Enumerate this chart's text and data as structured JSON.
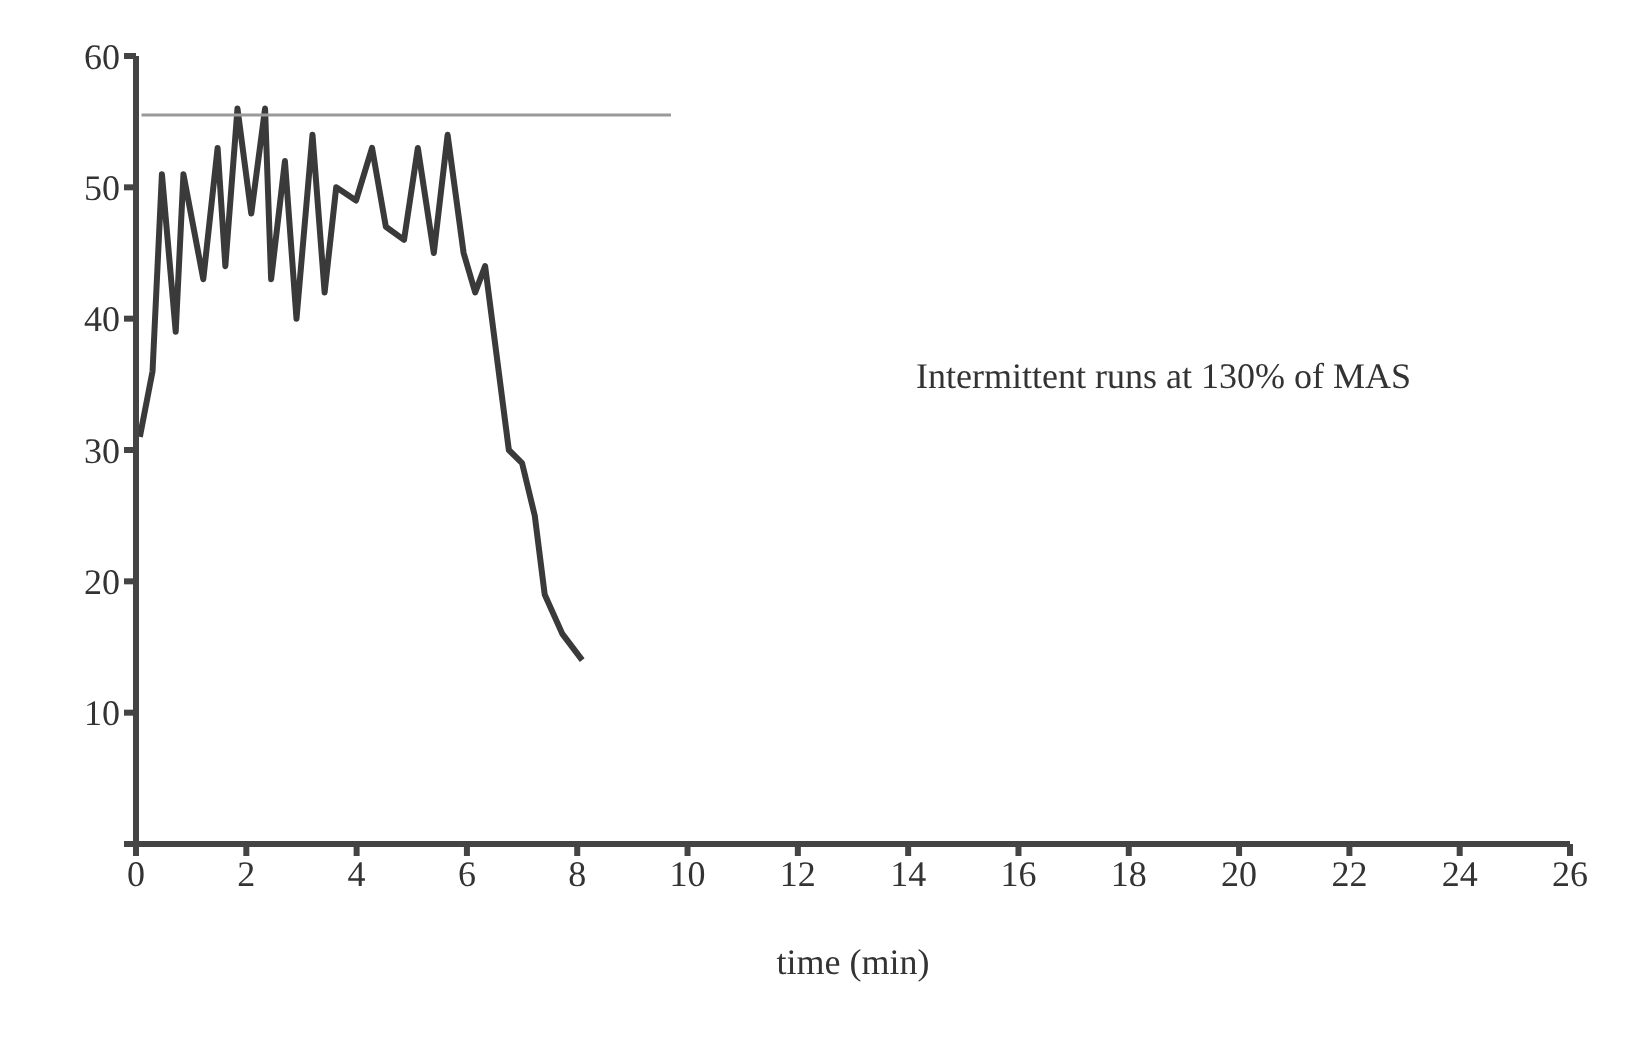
{
  "chart_data": {
    "type": "line",
    "xlabel": "time (min)",
    "annotations": [
      "Intermittent runs at 130% of MAS"
    ],
    "xlim": [
      0,
      26
    ],
    "xticks": [
      {
        "value": 0,
        "label": "0"
      },
      2,
      4,
      6,
      8,
      10,
      12,
      14,
      16,
      18,
      20,
      22,
      24,
      26
    ],
    "ylim": [
      0,
      60
    ],
    "yticks": [
      {
        "value": 0,
        "label": null
      },
      10,
      20,
      30,
      40,
      50,
      60
    ],
    "grid": false,
    "marker": "none",
    "line_style": "solid",
    "series": [
      {
        "color": "#3a3a3a",
        "x": [
          0.07,
          0.3,
          0.47,
          0.72,
          0.86,
          1.22,
          1.48,
          1.62,
          1.84,
          2.09,
          2.34,
          2.45,
          2.7,
          2.91,
          3.2,
          3.42,
          3.63,
          3.99,
          4.28,
          4.53,
          4.86,
          5.11,
          5.4,
          5.65,
          5.94,
          6.15,
          6.33,
          6.76,
          7.0,
          7.23,
          7.41,
          7.73,
          8.09
        ],
        "values": [
          31,
          36,
          51,
          39,
          51,
          43,
          53,
          44,
          56,
          48,
          56,
          43,
          52,
          40,
          54,
          42,
          50,
          49,
          53,
          47,
          46,
          53,
          45,
          54,
          45,
          42,
          44,
          30,
          29,
          25,
          19,
          16,
          14
        ]
      },
      {
        "type": "line",
        "color": "#9a9a9a",
        "x": [
          0.1,
          9.7
        ],
        "values": [
          55.5,
          55.5
        ]
      }
    ]
  }
}
